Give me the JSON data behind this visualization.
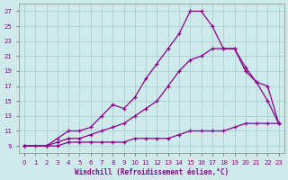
{
  "xlabel": "Windchill (Refroidissement éolien,°C)",
  "bg_color": "#ceeaea",
  "grid_color": "#a8d0d0",
  "line_color": "#8b008b",
  "xlim": [
    -0.5,
    23.5
  ],
  "ylim": [
    8.0,
    28.0
  ],
  "xticks": [
    0,
    1,
    2,
    3,
    4,
    5,
    6,
    7,
    8,
    9,
    10,
    11,
    12,
    13,
    14,
    15,
    16,
    17,
    18,
    19,
    20,
    21,
    22,
    23
  ],
  "yticks": [
    9,
    11,
    13,
    15,
    17,
    19,
    21,
    23,
    25,
    27
  ],
  "line1_x": [
    0,
    1,
    2,
    3,
    4,
    5,
    6,
    7,
    8,
    9,
    10,
    11,
    12,
    13,
    14,
    15,
    16,
    17,
    18,
    19,
    20,
    21,
    22,
    23
  ],
  "line1_y": [
    9,
    9,
    9,
    9,
    9.5,
    9.5,
    9.5,
    9.5,
    9.5,
    9.5,
    10,
    10,
    10,
    10,
    10.5,
    11,
    11,
    11,
    11,
    11.5,
    12,
    12,
    12,
    12
  ],
  "line2_x": [
    0,
    2,
    3,
    4,
    5,
    6,
    7,
    8,
    9,
    10,
    11,
    12,
    13,
    14,
    15,
    16,
    17,
    18,
    19,
    20,
    21,
    22,
    23
  ],
  "line2_y": [
    9,
    9,
    10,
    11,
    11,
    11.5,
    13,
    14.5,
    14,
    15.5,
    18,
    20,
    22,
    24,
    27,
    27,
    25,
    22,
    22,
    19,
    17.5,
    15,
    12
  ],
  "line3_x": [
    0,
    2,
    3,
    4,
    5,
    6,
    7,
    8,
    9,
    10,
    11,
    12,
    13,
    14,
    15,
    16,
    17,
    18,
    19,
    20,
    21,
    22,
    23
  ],
  "line3_y": [
    9,
    9,
    9.5,
    10,
    10,
    10.5,
    11,
    11.5,
    12,
    13,
    14,
    15,
    17,
    19,
    20.5,
    21,
    22,
    22,
    22,
    19.5,
    17.5,
    17,
    12
  ]
}
